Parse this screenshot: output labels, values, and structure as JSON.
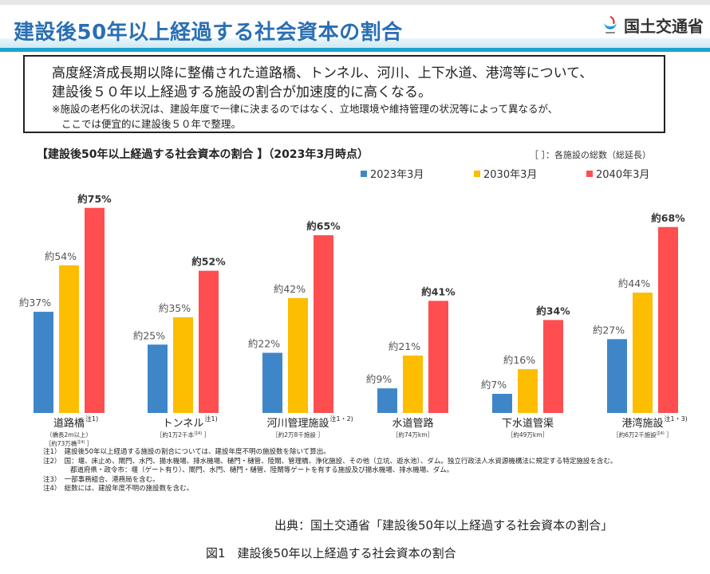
{
  "header": {
    "title": "建設後50年以上経過する社会資本の割合",
    "logo_text": "国土交通省",
    "logo_icon": "mlit-logo-icon"
  },
  "summary": {
    "line1": "高度経済成長期以降に整備された道路橋、トンネル、河川、上下水道、港湾等について、",
    "line2": "建設後５０年以上経過する施設の割合が加速度的に高くなる。",
    "note1": "※施設の老朽化の状況は、建設年度で一律に決まるのではなく、立地環境や維持管理の状況等によって異なるが、",
    "note2": "ここでは便宜的に建設後５０年で整理。"
  },
  "chart_data": {
    "type": "bar",
    "title": "【建設後50年以上経過する社会資本の割合 】（2023年3月時点）",
    "bracket_note": "［ ］：各施設の総数（総延長）",
    "legend_position": "top-right",
    "ylim": [
      0,
      80
    ],
    "grid": false,
    "categories": [
      {
        "name": "道路橋",
        "sup": "注1)",
        "sub": [
          "（橋長2m以上）",
          "［約73万橋",
          "注4)",
          " ］"
        ]
      },
      {
        "name": "トンネル",
        "sup": "注1)",
        "sub": [
          "［約1万2千本",
          "注4)",
          " ］"
        ]
      },
      {
        "name": "河川管理施設",
        "sup": "注1・2)",
        "sub": [
          "［約2万8千施設 ］"
        ]
      },
      {
        "name": "水道管路",
        "sup": "",
        "sub": [
          "［約74万km］"
        ]
      },
      {
        "name": "下水道管渠",
        "sup": "",
        "sub": [
          "［約49万km］"
        ]
      },
      {
        "name": "港湾施設",
        "sup": "注1・3)",
        "sub": [
          "［約6万2千施設",
          "注4)",
          " ］"
        ]
      }
    ],
    "series": [
      {
        "name": "2023年3月",
        "color": "#3f86c8",
        "values": [
          37,
          25,
          22,
          9,
          7,
          27
        ],
        "labels": [
          "約37%",
          "約25%",
          "約22%",
          "約9%",
          "約7%",
          "約27%"
        ]
      },
      {
        "name": "2030年3月",
        "color": "#fdbd00",
        "values": [
          54,
          35,
          42,
          21,
          16,
          44
        ],
        "labels": [
          "約54%",
          "約35%",
          "約42%",
          "約21%",
          "約16%",
          "約44%"
        ]
      },
      {
        "name": "2040年3月",
        "color": "#fe4e50",
        "values": [
          75,
          52,
          65,
          41,
          34,
          68
        ],
        "labels": [
          "約75%",
          "約52%",
          "約65%",
          "約41%",
          "約34%",
          "約68%"
        ]
      }
    ]
  },
  "notes": [
    "注1）　建設後50年以上経過する施設の割合については、建設年度不明の施設数を除いて算出。",
    "注2）　国：堰、床止め、閘門、水門、揚水機場、排水機場、樋門・樋管、陸閘、管理橋、浄化施設、その他（立坑、遊水池）、ダム。独立行政法人水資源機構法に規定する特定施設を含む。",
    "　　　　都道府県・政令市：堰（ゲート有り）、閘門、水門、樋門・樋管、陸閘等ゲートを有する施設及び揚水機場、排水機場、ダム。",
    "注3）　一部事務組合、港務局を含む。",
    "注4）　総数には、建設年度不明の施設数を含む。"
  ],
  "source": "出典：国土交通省「建設後50年以上経過する社会資本の割合」",
  "figure_caption": "図1　建設後50年以上経過する社会資本の割合"
}
